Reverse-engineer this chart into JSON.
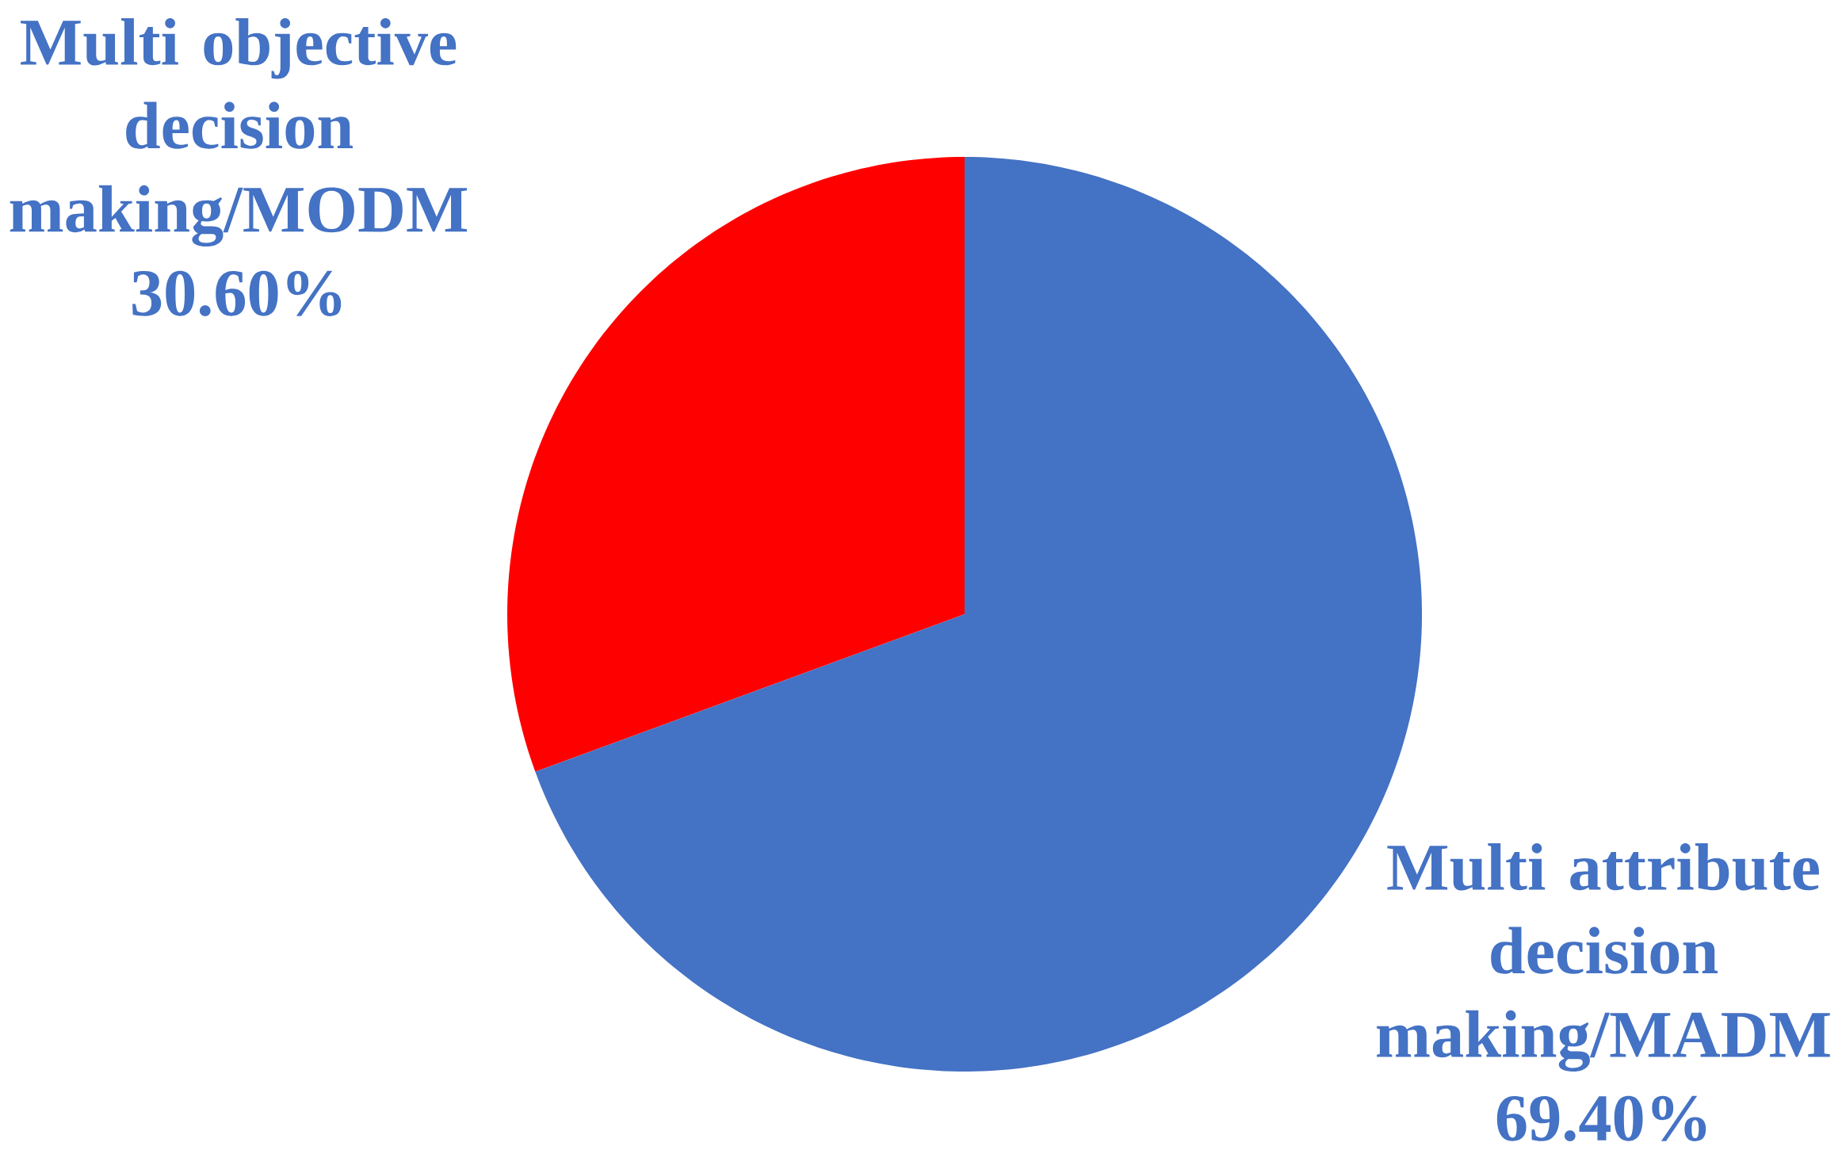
{
  "chart_data": {
    "type": "pie",
    "categories": [
      "Multi objective decision making/MODM",
      "Multi attribute decision making/MADM"
    ],
    "values": [
      30.6,
      69.4
    ],
    "value_labels": [
      "30.60%",
      "69.40%"
    ],
    "colors": [
      "#ff0000",
      "#4472c4"
    ]
  }
}
